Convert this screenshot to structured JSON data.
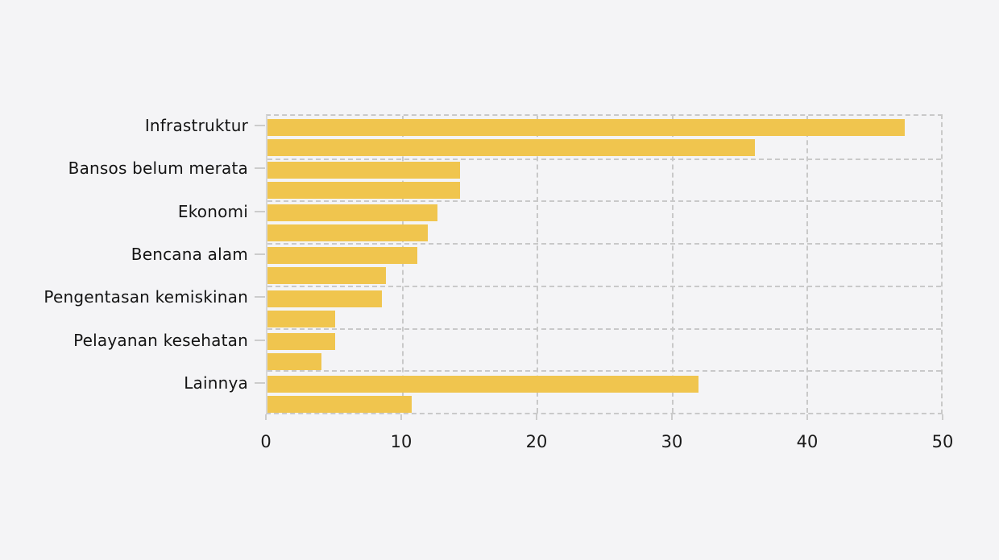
{
  "chart_data": {
    "type": "bar",
    "orientation": "horizontal",
    "title": "",
    "xlabel": "",
    "ylabel": "",
    "categories": [
      "Infrastruktur",
      "Bansos belum merata",
      "Ekonomi",
      "Bencana alam",
      "Pengentasan kemiskinan",
      "Pelayanan kesehatan",
      "Lainnya"
    ],
    "series": [
      {
        "name": "bar-1",
        "values": [
          47.3,
          14.3,
          12.6,
          11.1,
          8.5,
          5.0,
          32.0
        ]
      },
      {
        "name": "bar-2",
        "values": [
          36.2,
          14.3,
          11.9,
          8.8,
          5.0,
          4.0,
          10.7
        ]
      }
    ],
    "xlim": [
      0,
      50
    ],
    "x_ticks": [
      "0",
      "10",
      "20",
      "30",
      "40",
      "50"
    ],
    "grid": "dashed",
    "legend": "none",
    "colors": {
      "bar": "#f0c54e",
      "background": "#f4f4f6",
      "gridline": "#c9c9c9",
      "tick": "#cccccc",
      "text": "#141414"
    }
  }
}
